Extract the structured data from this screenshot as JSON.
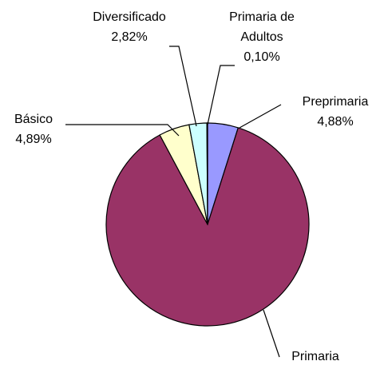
{
  "chart_data": {
    "type": "pie",
    "categories": [
      "Preprimaria",
      "Primaria",
      "Básico",
      "Diversificado",
      "Primaria de Adultos"
    ],
    "values": [
      4.88,
      87.31,
      4.89,
      2.82,
      0.1
    ],
    "value_labels": [
      "4,88%",
      null,
      "4,89%",
      "2,82%",
      "0,10%"
    ],
    "colors": [
      "#9999ff",
      "#993366",
      "#ffffcc",
      "#ccffff",
      "#ffffff"
    ]
  }
}
